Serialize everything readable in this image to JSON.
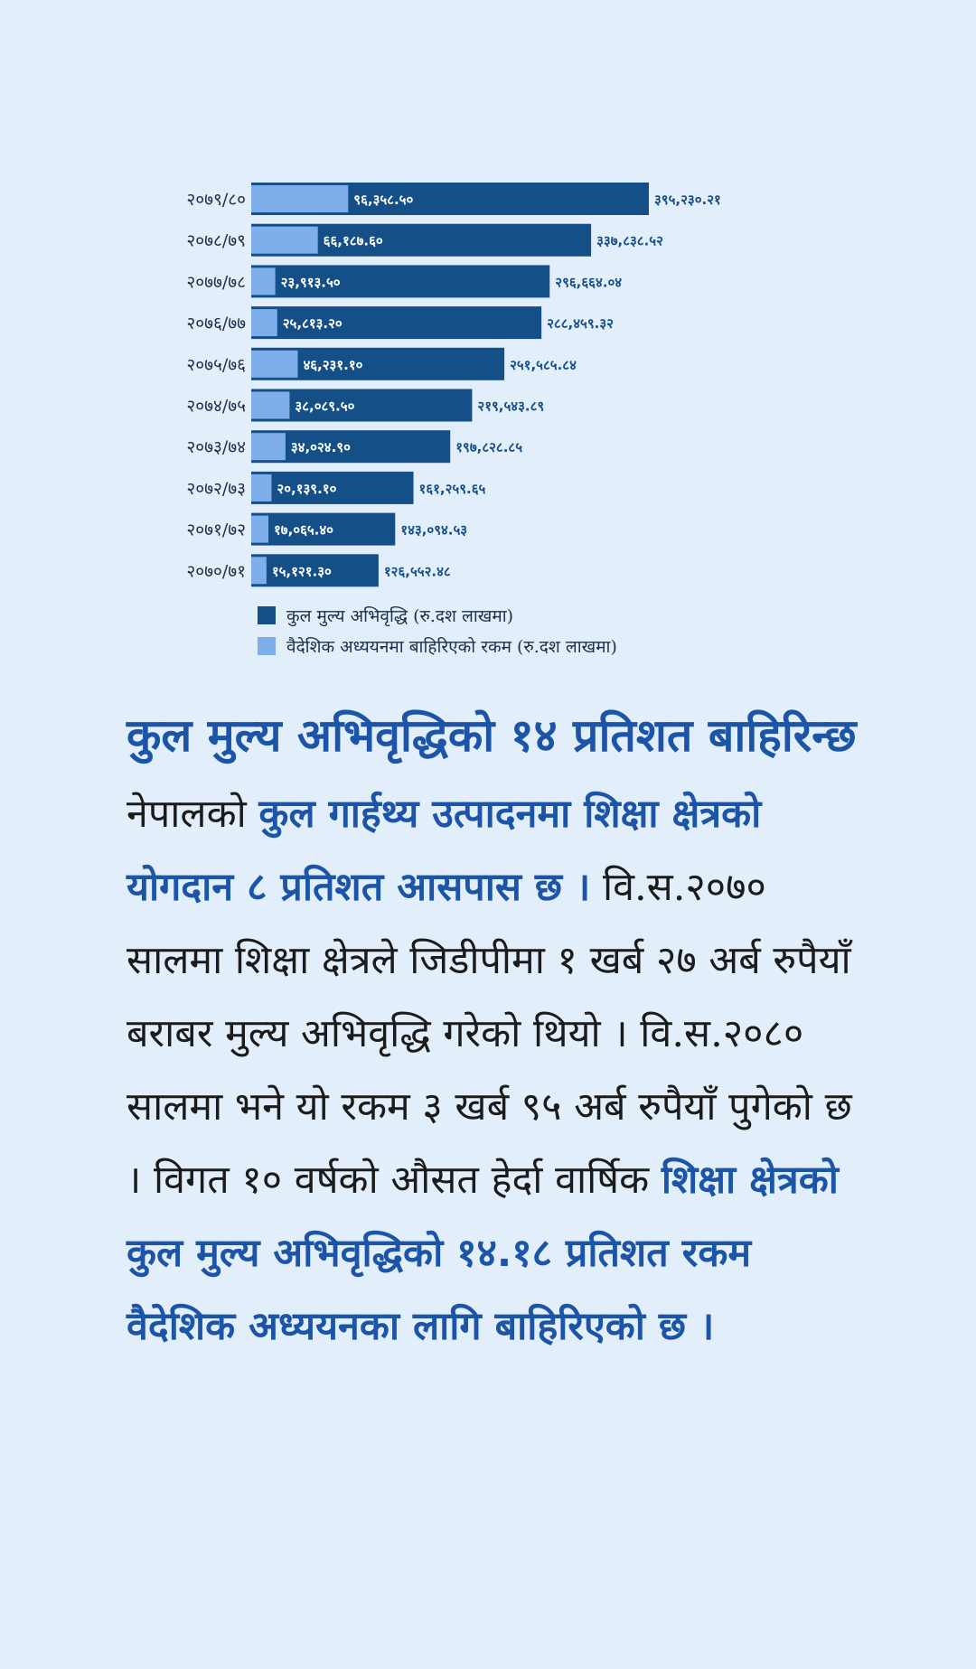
{
  "colors": {
    "background": "#e3eefb",
    "total": "#154f87",
    "foreign": "#7fafea",
    "headline": "#1c55a8",
    "body": "#1b1b1b"
  },
  "chart_data": {
    "type": "bar",
    "orientation": "horizontal",
    "overlay": true,
    "categories": [
      "२०७९/८०",
      "२०७८/७९",
      "२०७७/७८",
      "२०७६/७७",
      "२०७५/७६",
      "२०७४/७५",
      "२०७३/७४",
      "२०७२/७३",
      "२०७१/७२",
      "२०७०/७१"
    ],
    "series": [
      {
        "name": "कुल मुल्य अभिवृद्धि (रु.दश लाखमा)",
        "values": [
          395230.21,
          337838.52,
          296664.04,
          288459.32,
          251585.84,
          219543.89,
          197828.85,
          161259.65,
          143094.53,
          126552.48
        ],
        "labels": [
          "३९५,२३०.२१",
          "३३७,८३८.५२",
          "२९६,६६४.०४",
          "२८८,४५९.३२",
          "२५१,५८५.८४",
          "२१९,५४३.८९",
          "१९७,८२८.८५",
          "१६१,२५९.६५",
          "१४३,०९४.५३",
          "१२६,५५२.४८"
        ]
      },
      {
        "name": "वैदेशिक अध्ययनमा बाहिरिएको रकम (रु.दश लाखमा)",
        "values": [
          96358.5,
          66187.6,
          23913.5,
          25813.2,
          46231.1,
          38089.5,
          34024.9,
          20139.1,
          17065.4,
          15121.3
        ],
        "labels": [
          "९६,३५८.५०",
          "६६,१८७.६०",
          "२३,९१३.५०",
          "२५,८१३.२०",
          "४६,२३१.१०",
          "३८,०८९.५०",
          "३४,०२४.९०",
          "२०,१३९.१०",
          "१७,०६५.४०",
          "१५,१२१.३०"
        ]
      }
    ],
    "legend_position": "bottom-left",
    "grid": false
  },
  "article": {
    "headline": "कुल मुल्य अभिवृद्धिको १४ प्रतिशत बाहिरिन्छ",
    "p1": "नेपालको ",
    "p1_hl": "कुल गार्हथ्य उत्पादनमा शिक्षा क्षेत्रको योगदान ८ प्रतिशत आसपास छ ।",
    "p2": " वि.स.२०७० सालमा शिक्षा क्षेत्रले जिडीपीमा १ खर्ब २७ अर्ब रुपैयाँ बराबर मुल्य अभिवृद्धि गरेको थियो । वि.स.२०८० सालमा भने यो रकम ३ खर्ब ९५ अर्ब रुपैयाँ पुगेको छ । विगत १० वर्षको औसत हेर्दा वार्षिक ",
    "p2_hl": "शिक्षा क्षेत्रको कुल मुल्य अभिवृद्धिको १४.१८ प्रतिशत रकम वैदेशिक अध्ययनका लागि बाहिरिएको छ ।"
  }
}
